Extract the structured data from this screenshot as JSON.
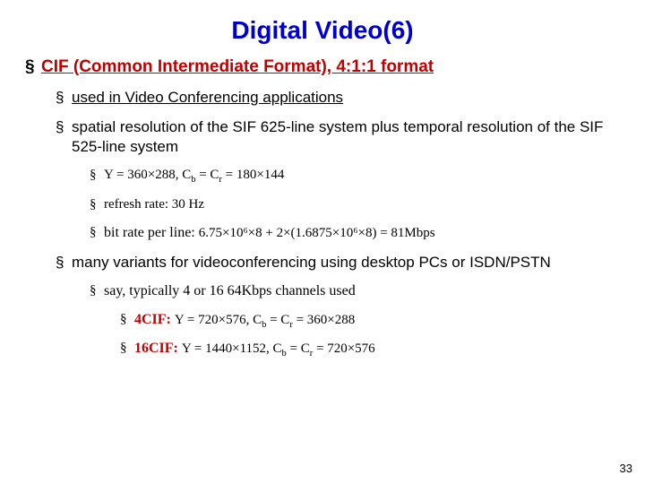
{
  "title": "Digital Video(6)",
  "heading": "CIF (Common Intermediate Format), 4:1:1 format",
  "b1": "used in Video Conferencing applications",
  "b2": "spatial resolution of the SIF 625-line system plus temporal resolution of the SIF 525-line system",
  "res_label": "Y = 360×288,  C",
  "res_mid": " = C",
  "res_tail": " = 180×144",
  "refresh": "refresh rate: 30 Hz",
  "bitrate_label": "bit rate per line: ",
  "bitrate_val": "6.75×10⁶×8 + 2×(1.6875×10⁶×8) = 81Mbps",
  "variants": "many variants  for videoconferencing using desktop PCs or ISDN/PSTN",
  "channels": "say, typically 4 or 16  64Kbps channels used",
  "cif4_label": "4CIF: ",
  "cif4_y": "Y = 720×576,  C",
  "cif4_mid": " = C",
  "cif4_tail": " = 360×288",
  "cif16_label": "16CIF: ",
  "cif16_y": "Y = 1440×1152,  C",
  "cif16_mid": " = C",
  "cif16_tail": " = 720×576",
  "pagenum": "33",
  "colors": {
    "title": "#0000cc",
    "accent": "#c00000",
    "text": "#000000",
    "bg": "#ffffff"
  }
}
